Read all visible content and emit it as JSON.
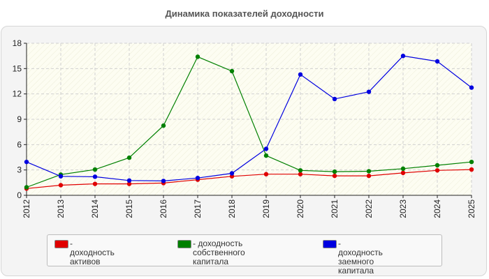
{
  "chart_data": {
    "type": "line",
    "title": "Динамика показателей доходности",
    "categories": [
      "2012",
      "2013",
      "2014",
      "2015",
      "2016",
      "2017",
      "2018",
      "2019",
      "2020",
      "2021",
      "2022",
      "2023",
      "2024",
      "2025"
    ],
    "ylim": [
      0,
      18
    ],
    "yticks": [
      0,
      3,
      6,
      9,
      12,
      15,
      18
    ],
    "grid": true,
    "legend_position": "bottom",
    "series": [
      {
        "name": "- доходность активов",
        "color": "#e00000",
        "values": [
          0.8,
          1.2,
          1.35,
          1.35,
          1.45,
          1.85,
          2.25,
          2.5,
          2.5,
          2.3,
          2.3,
          2.65,
          2.95,
          3.05
        ]
      },
      {
        "name": "- доходность собственного капитала",
        "color": "#008000",
        "values": [
          0.95,
          2.45,
          3.05,
          4.45,
          8.25,
          16.4,
          14.7,
          4.7,
          2.95,
          2.8,
          2.85,
          3.15,
          3.55,
          3.95
        ]
      },
      {
        "name": "- доходность заемного капитала",
        "color": "#0000e0",
        "values": [
          3.95,
          2.25,
          2.2,
          1.75,
          1.7,
          2.05,
          2.6,
          5.5,
          14.3,
          11.4,
          12.25,
          16.5,
          15.85,
          12.75
        ]
      }
    ]
  },
  "legend": [
    {
      "line1": "- доходность активов",
      "line2": ""
    },
    {
      "line1": "- доходность собственного",
      "line2": "капитала"
    },
    {
      "line1": "- доходность заемного",
      "line2": "капитала"
    }
  ]
}
